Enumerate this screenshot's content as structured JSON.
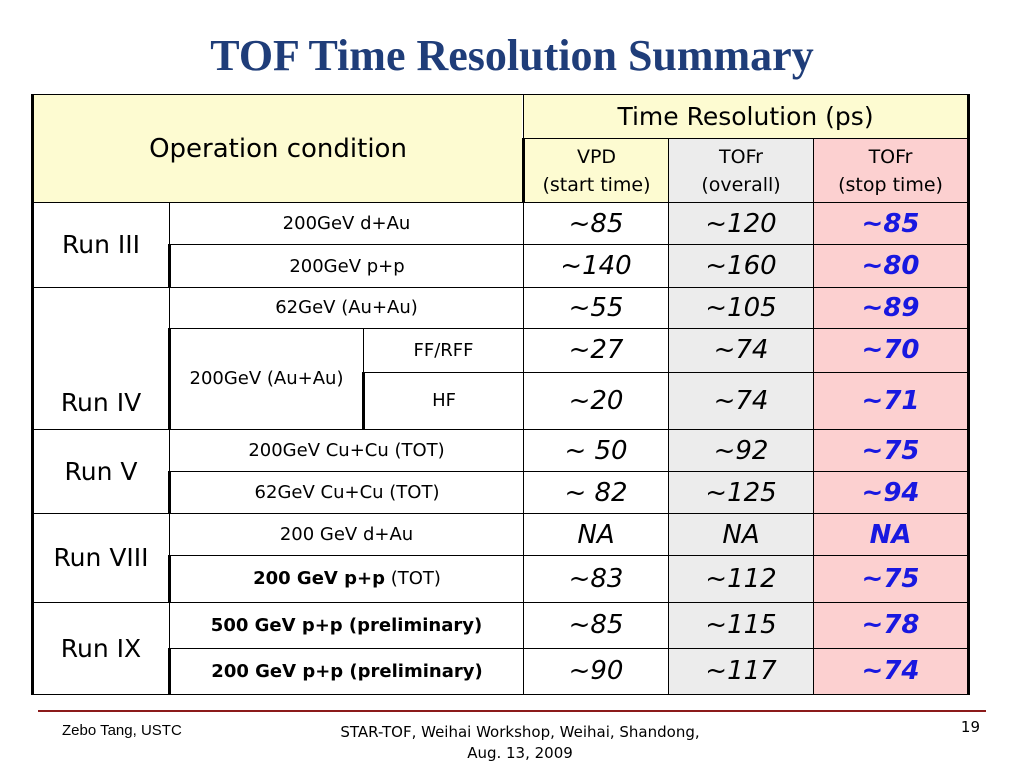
{
  "title": "TOF Time Resolution Summary",
  "table": {
    "operation_condition": "Operation condition",
    "time_resolution": "Time Resolution (ps)",
    "vpd_line1": "VPD",
    "vpd_line2": "(start time)",
    "tofr_overall_line1": "TOFr",
    "tofr_overall_line2": "(overall)",
    "tofr_stop_line1": "TOFr",
    "tofr_stop_line2": "(stop time)",
    "run3": "Run III",
    "run4": "Run IV",
    "run5": "Run V",
    "run8": "Run VIII",
    "run9": "Run IX",
    "r1_cond": "200GeV d+Au",
    "r1_vpd": "~85",
    "r1_overall": "~120",
    "r1_stop": "~85",
    "r2_cond": "200GeV p+p",
    "r2_vpd": "~140",
    "r2_overall": "~160",
    "r2_stop": "~80",
    "r3_cond": "62GeV (Au+Au)",
    "r3_vpd": "~55",
    "r3_overall": "~105",
    "r3_stop": "~89",
    "r4_cond_group": "200GeV (Au+Au)",
    "r4_sub": "FF/RFF",
    "r4_vpd": "~27",
    "r4_overall": "~74",
    "r4_stop": "~70",
    "r5_sub": "HF",
    "r5_vpd": "~20",
    "r5_overall": "~74",
    "r5_stop": "~71",
    "r6_cond": "200GeV Cu+Cu (TOT)",
    "r6_vpd": "~ 50",
    "r6_overall": "~92",
    "r6_stop": "~75",
    "r7_cond": "62GeV Cu+Cu (TOT)",
    "r7_vpd": "~ 82",
    "r7_overall": "~125",
    "r7_stop": "~94",
    "r8_cond": "200 GeV d+Au",
    "r8_vpd": "NA",
    "r8_overall": "NA",
    "r8_stop": "NA",
    "r9_cond_bold": "200 GeV p+p",
    "r9_cond_rest": " (TOT)",
    "r9_vpd": "~83",
    "r9_overall": "~112",
    "r9_stop": "~75",
    "r10_cond": "500 GeV p+p (preliminary)",
    "r10_vpd": "~85",
    "r10_overall": "~115",
    "r10_stop": "~78",
    "r11_cond": "200 GeV p+p (preliminary)",
    "r11_vpd": "~90",
    "r11_overall": "~117",
    "r11_stop": "~74"
  },
  "footer": {
    "author": "Zebo Tang, USTC",
    "event_line1": "STAR-TOF, Weihai Workshop, Weihai, Shandong,",
    "event_line2": "Aug. 13, 2009",
    "page_number": "19"
  },
  "colors": {
    "title": "#1f3d79",
    "header_bg": "#fdfbd1",
    "overall_bg": "#ececec",
    "stop_bg": "#fcd0d0",
    "stop_text": "#1818e0",
    "footer_rule": "#8b1a1a"
  }
}
